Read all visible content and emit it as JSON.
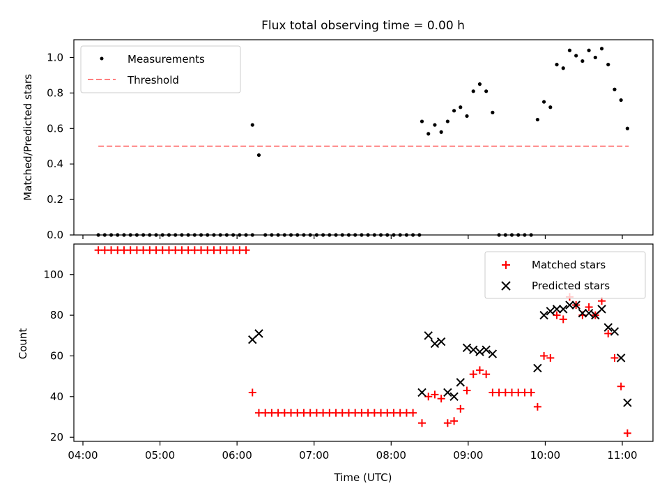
{
  "title": "Flux total observing time = 0.00 h",
  "chart_data": [
    {
      "type": "scatter",
      "ylabel": "Matched/Predicted stars",
      "xlabel": "",
      "ylim": [
        0,
        1.1
      ],
      "yticks": [
        "0.0",
        "0.2",
        "0.4",
        "0.6",
        "0.8",
        "1.0"
      ],
      "grid": false,
      "legend_position": "upper-left",
      "legend": [
        "Measurements",
        "Threshold"
      ],
      "threshold": {
        "name": "Threshold",
        "value": 0.5,
        "x_start": "04:12",
        "x_end": "11:05",
        "color": "#ff8080"
      },
      "series": [
        {
          "name": "Measurements",
          "color": "#000000",
          "marker": "dot",
          "points": [
            [
              "04:12",
              0
            ],
            [
              "04:17",
              0
            ],
            [
              "04:22",
              0
            ],
            [
              "04:27",
              0
            ],
            [
              "04:32",
              0
            ],
            [
              "04:37",
              0
            ],
            [
              "04:42",
              0
            ],
            [
              "04:47",
              0
            ],
            [
              "04:52",
              0
            ],
            [
              "04:57",
              0
            ],
            [
              "05:02",
              0
            ],
            [
              "05:07",
              0
            ],
            [
              "05:12",
              0
            ],
            [
              "05:17",
              0
            ],
            [
              "05:22",
              0
            ],
            [
              "05:27",
              0
            ],
            [
              "05:32",
              0
            ],
            [
              "05:37",
              0
            ],
            [
              "05:42",
              0
            ],
            [
              "05:47",
              0
            ],
            [
              "05:52",
              0
            ],
            [
              "05:57",
              0
            ],
            [
              "06:02",
              0
            ],
            [
              "06:07",
              0
            ],
            [
              "06:12",
              0
            ],
            [
              "06:12",
              0.62
            ],
            [
              "06:17",
              0.45
            ],
            [
              "06:22",
              0
            ],
            [
              "06:27",
              0
            ],
            [
              "06:32",
              0
            ],
            [
              "06:37",
              0
            ],
            [
              "06:42",
              0
            ],
            [
              "06:47",
              0
            ],
            [
              "06:52",
              0
            ],
            [
              "06:57",
              0
            ],
            [
              "07:02",
              0
            ],
            [
              "07:07",
              0
            ],
            [
              "07:12",
              0
            ],
            [
              "07:17",
              0
            ],
            [
              "07:22",
              0
            ],
            [
              "07:27",
              0
            ],
            [
              "07:32",
              0
            ],
            [
              "07:37",
              0
            ],
            [
              "07:42",
              0
            ],
            [
              "07:47",
              0
            ],
            [
              "07:52",
              0
            ],
            [
              "07:57",
              0
            ],
            [
              "08:02",
              0
            ],
            [
              "08:07",
              0
            ],
            [
              "08:12",
              0
            ],
            [
              "08:17",
              0
            ],
            [
              "08:22",
              0
            ],
            [
              "08:24",
              0.64
            ],
            [
              "08:29",
              0.57
            ],
            [
              "08:34",
              0.62
            ],
            [
              "08:39",
              0.58
            ],
            [
              "08:44",
              0.64
            ],
            [
              "08:49",
              0.7
            ],
            [
              "08:54",
              0.72
            ],
            [
              "08:59",
              0.67
            ],
            [
              "09:04",
              0.81
            ],
            [
              "09:09",
              0.85
            ],
            [
              "09:14",
              0.81
            ],
            [
              "09:19",
              0.69
            ],
            [
              "09:24",
              0
            ],
            [
              "09:29",
              0
            ],
            [
              "09:34",
              0
            ],
            [
              "09:39",
              0
            ],
            [
              "09:44",
              0
            ],
            [
              "09:49",
              0
            ],
            [
              "09:54",
              0.65
            ],
            [
              "09:59",
              0.75
            ],
            [
              "10:04",
              0.72
            ],
            [
              "10:09",
              0.96
            ],
            [
              "10:14",
              0.94
            ],
            [
              "10:19",
              1.04
            ],
            [
              "10:24",
              1.01
            ],
            [
              "10:29",
              0.98
            ],
            [
              "10:34",
              1.04
            ],
            [
              "10:39",
              1.0
            ],
            [
              "10:44",
              1.05
            ],
            [
              "10:49",
              0.96
            ],
            [
              "10:54",
              0.82
            ],
            [
              "10:59",
              0.76
            ],
            [
              "11:04",
              0.6
            ]
          ]
        }
      ]
    },
    {
      "type": "scatter",
      "ylabel": "Count",
      "xlabel": "Time (UTC)",
      "ylim": [
        18,
        115
      ],
      "yticks": [
        "20",
        "40",
        "60",
        "80",
        "100"
      ],
      "xticks": [
        "04:00",
        "05:00",
        "06:00",
        "07:00",
        "08:00",
        "09:00",
        "10:00",
        "11:00"
      ],
      "grid": false,
      "legend_position": "upper-right",
      "legend": [
        "Matched stars",
        "Predicted stars"
      ],
      "series": [
        {
          "name": "Matched stars",
          "color": "#ff0000",
          "marker": "plus",
          "points": [
            [
              "04:12",
              112
            ],
            [
              "04:17",
              112
            ],
            [
              "04:22",
              112
            ],
            [
              "04:27",
              112
            ],
            [
              "04:32",
              112
            ],
            [
              "04:37",
              112
            ],
            [
              "04:42",
              112
            ],
            [
              "04:47",
              112
            ],
            [
              "04:52",
              112
            ],
            [
              "04:57",
              112
            ],
            [
              "05:02",
              112
            ],
            [
              "05:07",
              112
            ],
            [
              "05:12",
              112
            ],
            [
              "05:17",
              112
            ],
            [
              "05:22",
              112
            ],
            [
              "05:27",
              112
            ],
            [
              "05:32",
              112
            ],
            [
              "05:37",
              112
            ],
            [
              "05:42",
              112
            ],
            [
              "05:47",
              112
            ],
            [
              "05:52",
              112
            ],
            [
              "05:57",
              112
            ],
            [
              "06:02",
              112
            ],
            [
              "06:07",
              112
            ],
            [
              "06:12",
              42
            ],
            [
              "06:17",
              32
            ],
            [
              "06:22",
              32
            ],
            [
              "06:27",
              32
            ],
            [
              "06:32",
              32
            ],
            [
              "06:37",
              32
            ],
            [
              "06:42",
              32
            ],
            [
              "06:47",
              32
            ],
            [
              "06:52",
              32
            ],
            [
              "06:57",
              32
            ],
            [
              "07:02",
              32
            ],
            [
              "07:07",
              32
            ],
            [
              "07:12",
              32
            ],
            [
              "07:17",
              32
            ],
            [
              "07:22",
              32
            ],
            [
              "07:27",
              32
            ],
            [
              "07:32",
              32
            ],
            [
              "07:37",
              32
            ],
            [
              "07:42",
              32
            ],
            [
              "07:47",
              32
            ],
            [
              "07:52",
              32
            ],
            [
              "07:57",
              32
            ],
            [
              "08:02",
              32
            ],
            [
              "08:07",
              32
            ],
            [
              "08:12",
              32
            ],
            [
              "08:17",
              32
            ],
            [
              "08:24",
              27
            ],
            [
              "08:29",
              40
            ],
            [
              "08:34",
              41
            ],
            [
              "08:39",
              39
            ],
            [
              "08:44",
              27
            ],
            [
              "08:49",
              28
            ],
            [
              "08:54",
              34
            ],
            [
              "08:59",
              43
            ],
            [
              "09:04",
              51
            ],
            [
              "09:09",
              53
            ],
            [
              "09:14",
              51
            ],
            [
              "09:19",
              42
            ],
            [
              "09:24",
              42
            ],
            [
              "09:29",
              42
            ],
            [
              "09:34",
              42
            ],
            [
              "09:39",
              42
            ],
            [
              "09:44",
              42
            ],
            [
              "09:49",
              42
            ],
            [
              "09:54",
              35
            ],
            [
              "09:59",
              60
            ],
            [
              "10:04",
              59
            ],
            [
              "10:09",
              80
            ],
            [
              "10:14",
              78
            ],
            [
              "10:19",
              89
            ],
            [
              "10:24",
              85
            ],
            [
              "10:29",
              80
            ],
            [
              "10:34",
              84
            ],
            [
              "10:39",
              80
            ],
            [
              "10:44",
              87
            ],
            [
              "10:49",
              71
            ],
            [
              "10:54",
              59
            ],
            [
              "10:59",
              45
            ],
            [
              "11:04",
              22
            ]
          ]
        },
        {
          "name": "Predicted stars",
          "color": "#000000",
          "marker": "x",
          "points": [
            [
              "06:12",
              68
            ],
            [
              "06:17",
              71
            ],
            [
              "08:24",
              42
            ],
            [
              "08:29",
              70
            ],
            [
              "08:34",
              66
            ],
            [
              "08:39",
              67
            ],
            [
              "08:44",
              42
            ],
            [
              "08:49",
              40
            ],
            [
              "08:54",
              47
            ],
            [
              "08:59",
              64
            ],
            [
              "09:04",
              63
            ],
            [
              "09:09",
              62
            ],
            [
              "09:14",
              63
            ],
            [
              "09:19",
              61
            ],
            [
              "09:54",
              54
            ],
            [
              "09:59",
              80
            ],
            [
              "10:04",
              82
            ],
            [
              "10:09",
              83
            ],
            [
              "10:14",
              83
            ],
            [
              "10:19",
              85
            ],
            [
              "10:24",
              85
            ],
            [
              "10:29",
              81
            ],
            [
              "10:34",
              81
            ],
            [
              "10:39",
              80
            ],
            [
              "10:44",
              83
            ],
            [
              "10:49",
              74
            ],
            [
              "10:54",
              72
            ],
            [
              "10:59",
              59
            ],
            [
              "11:04",
              37
            ]
          ]
        }
      ]
    }
  ]
}
